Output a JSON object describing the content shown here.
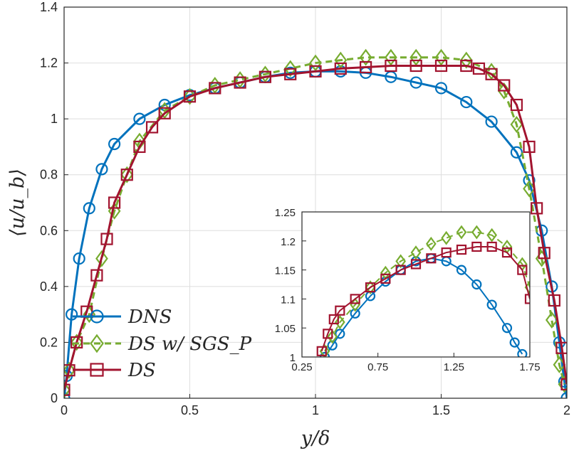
{
  "chart_data": [
    {
      "type": "line",
      "xlabel": "y/δ",
      "ylabel": "⟨u/u_b⟩",
      "xlim": [
        0,
        2
      ],
      "ylim": [
        0,
        1.4
      ],
      "x_ticks": [
        "0",
        "0.5",
        "1",
        "1.5",
        "2"
      ],
      "y_ticks": [
        "0",
        "0.2",
        "0.4",
        "0.6",
        "0.8",
        "1",
        "1.2",
        "1.4"
      ],
      "grid": true,
      "legend_position": "bottom-left",
      "series": [
        {
          "name": "DNS",
          "color": "#0072BD",
          "marker": "circle",
          "x": [
            0.0,
            0.01,
            0.03,
            0.06,
            0.1,
            0.15,
            0.2,
            0.3,
            0.4,
            0.5,
            0.6,
            0.7,
            0.8,
            0.9,
            1.0,
            1.1,
            1.2,
            1.3,
            1.4,
            1.5,
            1.6,
            1.7,
            1.8,
            1.85,
            1.9,
            1.94,
            1.97,
            1.99,
            2.0
          ],
          "y": [
            0.0,
            0.08,
            0.3,
            0.5,
            0.68,
            0.82,
            0.91,
            1.0,
            1.05,
            1.085,
            1.11,
            1.13,
            1.15,
            1.165,
            1.17,
            1.17,
            1.165,
            1.15,
            1.13,
            1.11,
            1.06,
            0.99,
            0.88,
            0.78,
            0.6,
            0.4,
            0.2,
            0.06,
            0.0
          ]
        },
        {
          "name": "DS w/ SGS_P",
          "color": "#77AC30",
          "marker": "diamond",
          "x": [
            0.0,
            0.02,
            0.05,
            0.1,
            0.15,
            0.2,
            0.25,
            0.3,
            0.4,
            0.5,
            0.6,
            0.7,
            0.8,
            0.9,
            1.0,
            1.1,
            1.2,
            1.3,
            1.4,
            1.5,
            1.6,
            1.7,
            1.75,
            1.8,
            1.85,
            1.9,
            1.94,
            1.97,
            1.99
          ],
          "y": [
            0.03,
            0.1,
            0.2,
            0.3,
            0.5,
            0.67,
            0.8,
            0.92,
            1.03,
            1.08,
            1.12,
            1.14,
            1.16,
            1.18,
            1.2,
            1.21,
            1.22,
            1.22,
            1.22,
            1.22,
            1.21,
            1.17,
            1.1,
            0.98,
            0.75,
            0.5,
            0.28,
            0.12,
            0.05
          ]
        },
        {
          "name": "DS",
          "color": "#A2142F",
          "marker": "square",
          "x": [
            0.0,
            0.02,
            0.05,
            0.09,
            0.13,
            0.17,
            0.2,
            0.25,
            0.3,
            0.35,
            0.4,
            0.5,
            0.6,
            0.7,
            0.8,
            0.9,
            1.0,
            1.1,
            1.2,
            1.3,
            1.4,
            1.5,
            1.6,
            1.65,
            1.7,
            1.75,
            1.8,
            1.85,
            1.88,
            1.91,
            1.95,
            1.98,
            2.0
          ],
          "y": [
            0.03,
            0.1,
            0.2,
            0.31,
            0.44,
            0.57,
            0.7,
            0.8,
            0.9,
            0.97,
            1.02,
            1.08,
            1.11,
            1.13,
            1.15,
            1.16,
            1.17,
            1.18,
            1.185,
            1.19,
            1.19,
            1.19,
            1.19,
            1.18,
            1.16,
            1.12,
            1.05,
            0.9,
            0.68,
            0.52,
            0.35,
            0.18,
            0.05
          ]
        }
      ]
    },
    {
      "type": "line",
      "xlim": [
        0.25,
        1.75
      ],
      "ylim": [
        1.0,
        1.25
      ],
      "x_ticks": [
        "0.25",
        "0.75",
        "1.25",
        "1.75"
      ],
      "y_ticks": [
        "1",
        "1.05",
        "1.1",
        "1.15",
        "1.2",
        "1.25"
      ],
      "grid": false,
      "series": [
        {
          "name": "DNS",
          "color": "#0072BD",
          "marker": "circle",
          "x": [
            0.4,
            0.45,
            0.5,
            0.6,
            0.7,
            0.8,
            0.9,
            1.0,
            1.1,
            1.2,
            1.3,
            1.4,
            1.5,
            1.6,
            1.65,
            1.7
          ],
          "y": [
            1.0,
            1.02,
            1.04,
            1.075,
            1.105,
            1.13,
            1.15,
            1.165,
            1.17,
            1.165,
            1.15,
            1.125,
            1.09,
            1.05,
            1.025,
            1.005
          ]
        },
        {
          "name": "DS w/ SGS_P",
          "color": "#77AC30",
          "marker": "diamond",
          "x": [
            0.4,
            0.45,
            0.5,
            0.6,
            0.7,
            0.8,
            0.9,
            1.0,
            1.1,
            1.2,
            1.3,
            1.4,
            1.5,
            1.6,
            1.7,
            1.75
          ],
          "y": [
            1.01,
            1.035,
            1.06,
            1.09,
            1.12,
            1.145,
            1.165,
            1.18,
            1.195,
            1.205,
            1.215,
            1.215,
            1.21,
            1.19,
            1.16,
            1.12
          ]
        },
        {
          "name": "DS",
          "color": "#A2142F",
          "marker": "square",
          "x": [
            0.38,
            0.42,
            0.46,
            0.5,
            0.6,
            0.7,
            0.8,
            0.9,
            1.0,
            1.1,
            1.2,
            1.3,
            1.4,
            1.5,
            1.6,
            1.7,
            1.75
          ],
          "y": [
            1.01,
            1.04,
            1.065,
            1.08,
            1.1,
            1.12,
            1.135,
            1.15,
            1.16,
            1.17,
            1.18,
            1.185,
            1.19,
            1.19,
            1.18,
            1.15,
            1.1
          ]
        }
      ]
    }
  ]
}
